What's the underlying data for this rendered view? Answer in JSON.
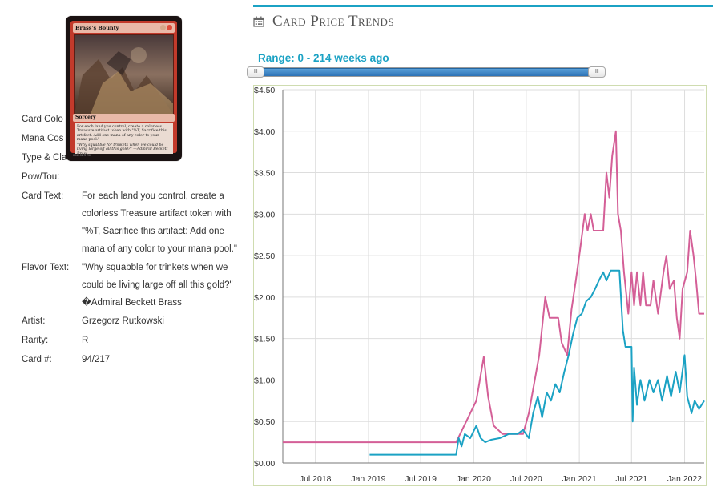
{
  "card": {
    "image": {
      "name": "Brass's Bounty",
      "type_line": "Sorcery",
      "rules_text": "For each land you control, create a colorless Treasure artifact token with \"%T, Sacrifice this artifact: Add one mana of any color to your mana pool.\"",
      "flavor_text": "\"Why squabble for trinkets when we could be living large off all this gold?\" —Admiral Beckett Brass",
      "footer": "094/196 R RIX"
    },
    "details": [
      {
        "label": "Card Colo",
        "value": ""
      },
      {
        "label": "Mana Cos",
        "value": ""
      },
      {
        "label": "Type & Cla",
        "value": ""
      },
      {
        "label": "Pow/Tou:",
        "value": ""
      },
      {
        "label": "Card Text:",
        "value": "For each land you control, create a colorless Treasure artifact token with \"%T, Sacrifice this artifact: Add one mana of any color to your mana pool.\""
      },
      {
        "label": "Flavor Text:",
        "value": "\"Why squabble for trinkets when we could be living large off all this gold?\" �Admiral Beckett Brass"
      },
      {
        "label": "Artist:",
        "value": "Grzegorz Rutkowski"
      },
      {
        "label": "Rarity:",
        "value": "R"
      },
      {
        "label": "Card #:",
        "value": "94/217"
      }
    ]
  },
  "price_trends": {
    "title": "Card Price Trends",
    "title_icon": "calendar-icon",
    "range_label": "Range: 0 - 214 weeks ago",
    "slider": {
      "min_weeks": 0,
      "max_weeks": 214,
      "handle_left_label": "III",
      "handle_right_label": "III"
    },
    "colors": {
      "accent": "#1ba2c4",
      "series_a": "#d45f97",
      "series_b": "#1ba2c4",
      "grid": "#dddddd"
    }
  },
  "chart_data": {
    "type": "line",
    "title": "",
    "xlabel": "",
    "ylabel": "",
    "ylim": [
      0,
      4.5
    ],
    "xlim": [
      "2018-03-10",
      "2022-03-10"
    ],
    "y_ticks": [
      "$0.00",
      "$0.50",
      "$1.00",
      "$1.50",
      "$2.00",
      "$2.50",
      "$3.00",
      "$3.50",
      "$4.00",
      "$4.50"
    ],
    "x_ticks": [
      {
        "label": "Jul 2018",
        "date": "2018-07-01"
      },
      {
        "label": "Jan 2019",
        "date": "2019-01-01"
      },
      {
        "label": "Jul 2019",
        "date": "2019-07-01"
      },
      {
        "label": "Jan 2020",
        "date": "2020-01-01"
      },
      {
        "label": "Jul 2020",
        "date": "2020-07-01"
      },
      {
        "label": "Jan 2021",
        "date": "2021-01-01"
      },
      {
        "label": "Jul 2021",
        "date": "2021-07-01"
      },
      {
        "label": "Jan 2022",
        "date": "2022-01-01"
      }
    ],
    "grid": true,
    "series": [
      {
        "color": "#d45f97",
        "points": [
          [
            "2018-03-10",
            0.25
          ],
          [
            "2019-11-01",
            0.25
          ],
          [
            "2019-11-15",
            0.35
          ],
          [
            "2020-01-10",
            0.75
          ],
          [
            "2020-02-05",
            1.28
          ],
          [
            "2020-02-20",
            0.8
          ],
          [
            "2020-03-10",
            0.45
          ],
          [
            "2020-04-10",
            0.35
          ],
          [
            "2020-06-20",
            0.35
          ],
          [
            "2020-07-10",
            0.6
          ],
          [
            "2020-08-15",
            1.3
          ],
          [
            "2020-09-05",
            2.0
          ],
          [
            "2020-09-20",
            1.75
          ],
          [
            "2020-10-20",
            1.75
          ],
          [
            "2020-11-01",
            1.45
          ],
          [
            "2020-11-20",
            1.3
          ],
          [
            "2020-12-05",
            1.85
          ],
          [
            "2020-12-20",
            2.2
          ],
          [
            "2021-01-05",
            2.6
          ],
          [
            "2021-01-20",
            3.0
          ],
          [
            "2021-01-30",
            2.8
          ],
          [
            "2021-02-10",
            3.0
          ],
          [
            "2021-02-20",
            2.8
          ],
          [
            "2021-03-25",
            2.8
          ],
          [
            "2021-04-05",
            3.5
          ],
          [
            "2021-04-15",
            3.2
          ],
          [
            "2021-04-25",
            3.7
          ],
          [
            "2021-05-08",
            4.0
          ],
          [
            "2021-05-15",
            3.0
          ],
          [
            "2021-05-25",
            2.8
          ],
          [
            "2021-06-05",
            2.3
          ],
          [
            "2021-06-20",
            1.8
          ],
          [
            "2021-07-01",
            2.3
          ],
          [
            "2021-07-10",
            1.9
          ],
          [
            "2021-07-20",
            2.3
          ],
          [
            "2021-08-01",
            1.9
          ],
          [
            "2021-08-10",
            2.3
          ],
          [
            "2021-08-20",
            1.9
          ],
          [
            "2021-09-05",
            1.9
          ],
          [
            "2021-09-15",
            2.2
          ],
          [
            "2021-10-01",
            1.8
          ],
          [
            "2021-10-20",
            2.3
          ],
          [
            "2021-10-30",
            2.5
          ],
          [
            "2021-11-10",
            2.1
          ],
          [
            "2021-11-25",
            2.2
          ],
          [
            "2021-12-05",
            1.75
          ],
          [
            "2021-12-15",
            1.5
          ],
          [
            "2021-12-25",
            2.1
          ],
          [
            "2022-01-10",
            2.3
          ],
          [
            "2022-01-20",
            2.8
          ],
          [
            "2022-02-01",
            2.5
          ],
          [
            "2022-02-10",
            2.2
          ],
          [
            "2022-02-20",
            1.8
          ],
          [
            "2022-03-10",
            1.8
          ]
        ]
      },
      {
        "color": "#1ba2c4",
        "points": [
          [
            "2019-01-05",
            0.1
          ],
          [
            "2019-11-01",
            0.1
          ],
          [
            "2019-11-10",
            0.3
          ],
          [
            "2019-11-20",
            0.2
          ],
          [
            "2019-12-01",
            0.35
          ],
          [
            "2019-12-20",
            0.3
          ],
          [
            "2020-01-10",
            0.45
          ],
          [
            "2020-01-25",
            0.3
          ],
          [
            "2020-02-10",
            0.25
          ],
          [
            "2020-03-01",
            0.28
          ],
          [
            "2020-04-01",
            0.3
          ],
          [
            "2020-05-01",
            0.35
          ],
          [
            "2020-06-01",
            0.35
          ],
          [
            "2020-06-20",
            0.4
          ],
          [
            "2020-07-10",
            0.3
          ],
          [
            "2020-07-25",
            0.6
          ],
          [
            "2020-08-10",
            0.8
          ],
          [
            "2020-08-25",
            0.55
          ],
          [
            "2020-09-10",
            0.85
          ],
          [
            "2020-09-25",
            0.75
          ],
          [
            "2020-10-10",
            0.95
          ],
          [
            "2020-10-25",
            0.85
          ],
          [
            "2020-11-10",
            1.1
          ],
          [
            "2020-11-25",
            1.3
          ],
          [
            "2020-12-10",
            1.55
          ],
          [
            "2020-12-25",
            1.75
          ],
          [
            "2021-01-10",
            1.8
          ],
          [
            "2021-01-25",
            1.95
          ],
          [
            "2021-02-10",
            2.0
          ],
          [
            "2021-02-25",
            2.1
          ],
          [
            "2021-03-10",
            2.2
          ],
          [
            "2021-03-25",
            2.3
          ],
          [
            "2021-04-05",
            2.2
          ],
          [
            "2021-04-20",
            2.32
          ],
          [
            "2021-05-20",
            2.32
          ],
          [
            "2021-06-01",
            1.6
          ],
          [
            "2021-06-10",
            1.4
          ],
          [
            "2021-07-01",
            1.4
          ],
          [
            "2021-07-05",
            0.5
          ],
          [
            "2021-07-10",
            1.15
          ],
          [
            "2021-07-20",
            0.7
          ],
          [
            "2021-08-01",
            1.0
          ],
          [
            "2021-08-15",
            0.75
          ],
          [
            "2021-09-01",
            1.0
          ],
          [
            "2021-09-15",
            0.85
          ],
          [
            "2021-10-01",
            1.0
          ],
          [
            "2021-10-15",
            0.75
          ],
          [
            "2021-11-01",
            1.05
          ],
          [
            "2021-11-15",
            0.8
          ],
          [
            "2021-12-01",
            1.1
          ],
          [
            "2021-12-15",
            0.85
          ],
          [
            "2022-01-01",
            1.3
          ],
          [
            "2022-01-10",
            0.8
          ],
          [
            "2022-01-25",
            0.6
          ],
          [
            "2022-02-05",
            0.75
          ],
          [
            "2022-02-20",
            0.65
          ],
          [
            "2022-03-10",
            0.75
          ]
        ]
      }
    ]
  }
}
